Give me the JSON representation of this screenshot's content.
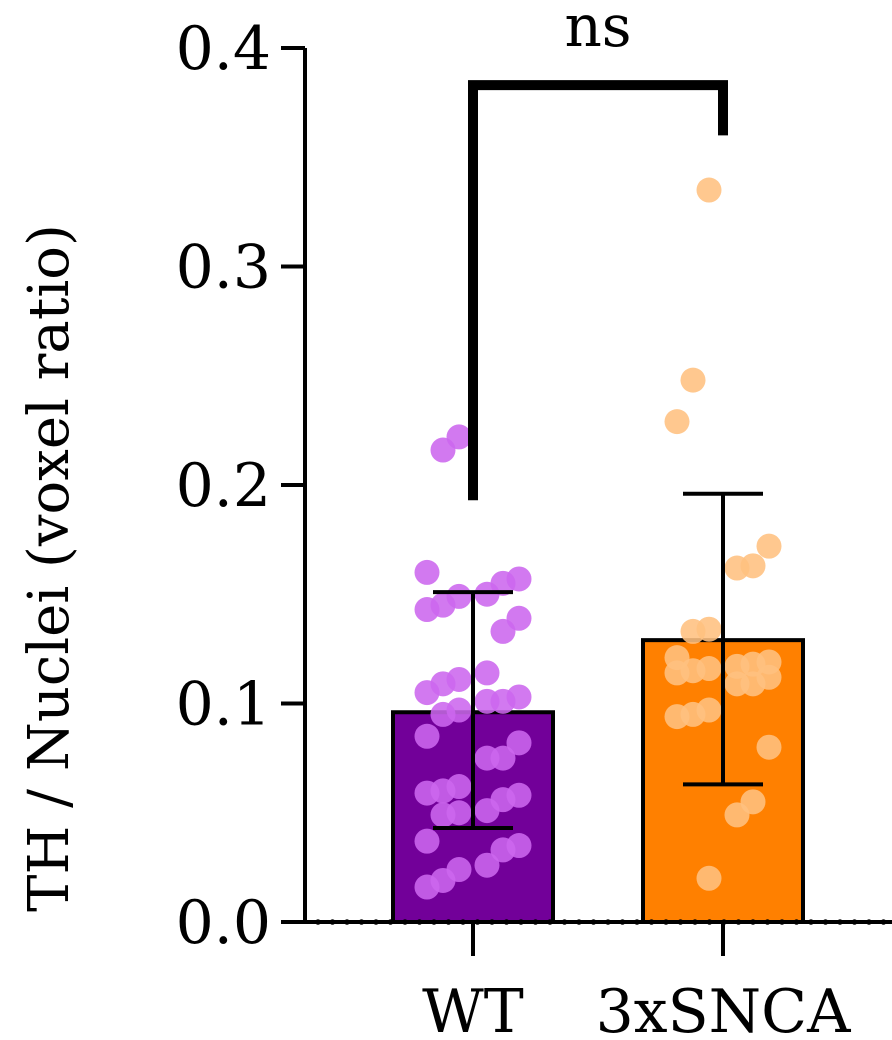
{
  "chart_data": {
    "type": "bar",
    "title": "",
    "xlabel": "",
    "ylabel": "TH / Nuclei (voxel ratio)",
    "ylim": [
      0,
      0.4
    ],
    "yticks": [
      {
        "value": 0.0,
        "label": "0.0"
      },
      {
        "value": 0.1,
        "label": "0.1"
      },
      {
        "value": 0.2,
        "label": "0.2"
      },
      {
        "value": 0.3,
        "label": "0.3"
      },
      {
        "value": 0.4,
        "label": "0.4"
      }
    ],
    "grid": false,
    "legend": "none",
    "categories": [
      "WT",
      "3xSNCA"
    ],
    "bars": [
      {
        "category": "WT",
        "mean": 0.096,
        "error_low": 0.043,
        "error_high": 0.151,
        "bar_color": "#720099",
        "point_color": "#CC66EE",
        "points": [
          0.222,
          0.216,
          0.16,
          0.157,
          0.155,
          0.15,
          0.149,
          0.145,
          0.143,
          0.139,
          0.133,
          0.114,
          0.111,
          0.109,
          0.105,
          0.103,
          0.101,
          0.101,
          0.097,
          0.095,
          0.085,
          0.082,
          0.075,
          0.075,
          0.062,
          0.06,
          0.059,
          0.058,
          0.056,
          0.051,
          0.05,
          0.049,
          0.037,
          0.035,
          0.033,
          0.026,
          0.024,
          0.019,
          0.016
        ]
      },
      {
        "category": "3xSNCA",
        "mean": 0.129,
        "error_low": 0.063,
        "error_high": 0.196,
        "bar_color": "#FF8000",
        "point_color": "#FFC080",
        "points": [
          0.335,
          0.248,
          0.229,
          0.172,
          0.163,
          0.162,
          0.134,
          0.133,
          0.121,
          0.119,
          0.118,
          0.117,
          0.116,
          0.115,
          0.114,
          0.112,
          0.109,
          0.109,
          0.097,
          0.095,
          0.094,
          0.08,
          0.055,
          0.049,
          0.02
        ]
      }
    ],
    "annotations": [
      {
        "type": "significance-bracket",
        "from": "WT",
        "to": "3xSNCA",
        "label": "ns",
        "y": 0.383
      }
    ]
  }
}
